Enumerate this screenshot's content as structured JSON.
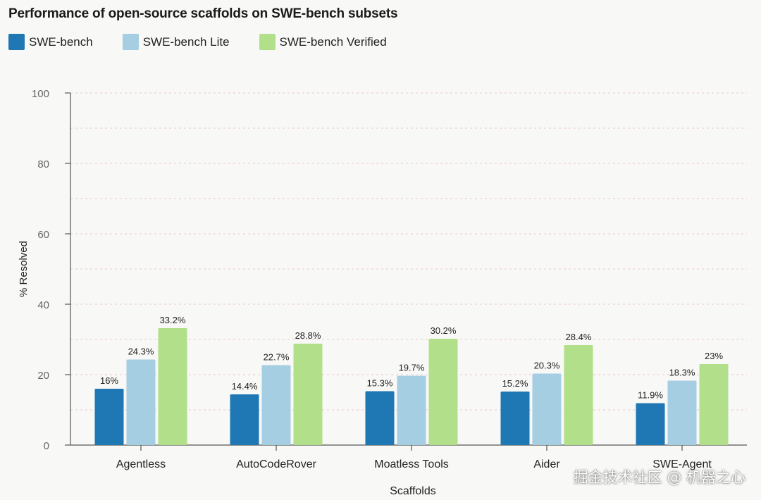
{
  "chart_data": {
    "type": "bar",
    "title": "Performance of open-source scaffolds on SWE-bench subsets",
    "xlabel": "Scaffolds",
    "ylabel": "% Resolved",
    "ylim": [
      0,
      100
    ],
    "yticks": [
      "0",
      "20",
      "40",
      "60",
      "80",
      "100"
    ],
    "grid": "dashed horizontal every 10",
    "legend_position": "top-left",
    "categories": [
      "Agentless",
      "AutoCodeRover",
      "Moatless Tools",
      "Aider",
      "SWE-Agent"
    ],
    "series": [
      {
        "name": "SWE-bench",
        "color": "#1f77b4",
        "values": [
          16,
          14.4,
          15.3,
          15.2,
          11.9
        ],
        "labels": [
          "16%",
          "14.4%",
          "15.3%",
          "15.2%",
          "11.9%"
        ]
      },
      {
        "name": "SWE-bench Lite",
        "color": "#a6cee3",
        "values": [
          24.3,
          22.7,
          19.7,
          20.3,
          18.3
        ],
        "labels": [
          "24.3%",
          "22.7%",
          "19.7%",
          "20.3%",
          "18.3%"
        ]
      },
      {
        "name": "SWE-bench Verified",
        "color": "#b2df8a",
        "values": [
          33.2,
          28.8,
          30.2,
          28.4,
          23
        ],
        "labels": [
          "33.2%",
          "28.8%",
          "30.2%",
          "28.4%",
          "23%"
        ]
      }
    ]
  },
  "watermark": "掘金技术社区 @ 机器之心"
}
